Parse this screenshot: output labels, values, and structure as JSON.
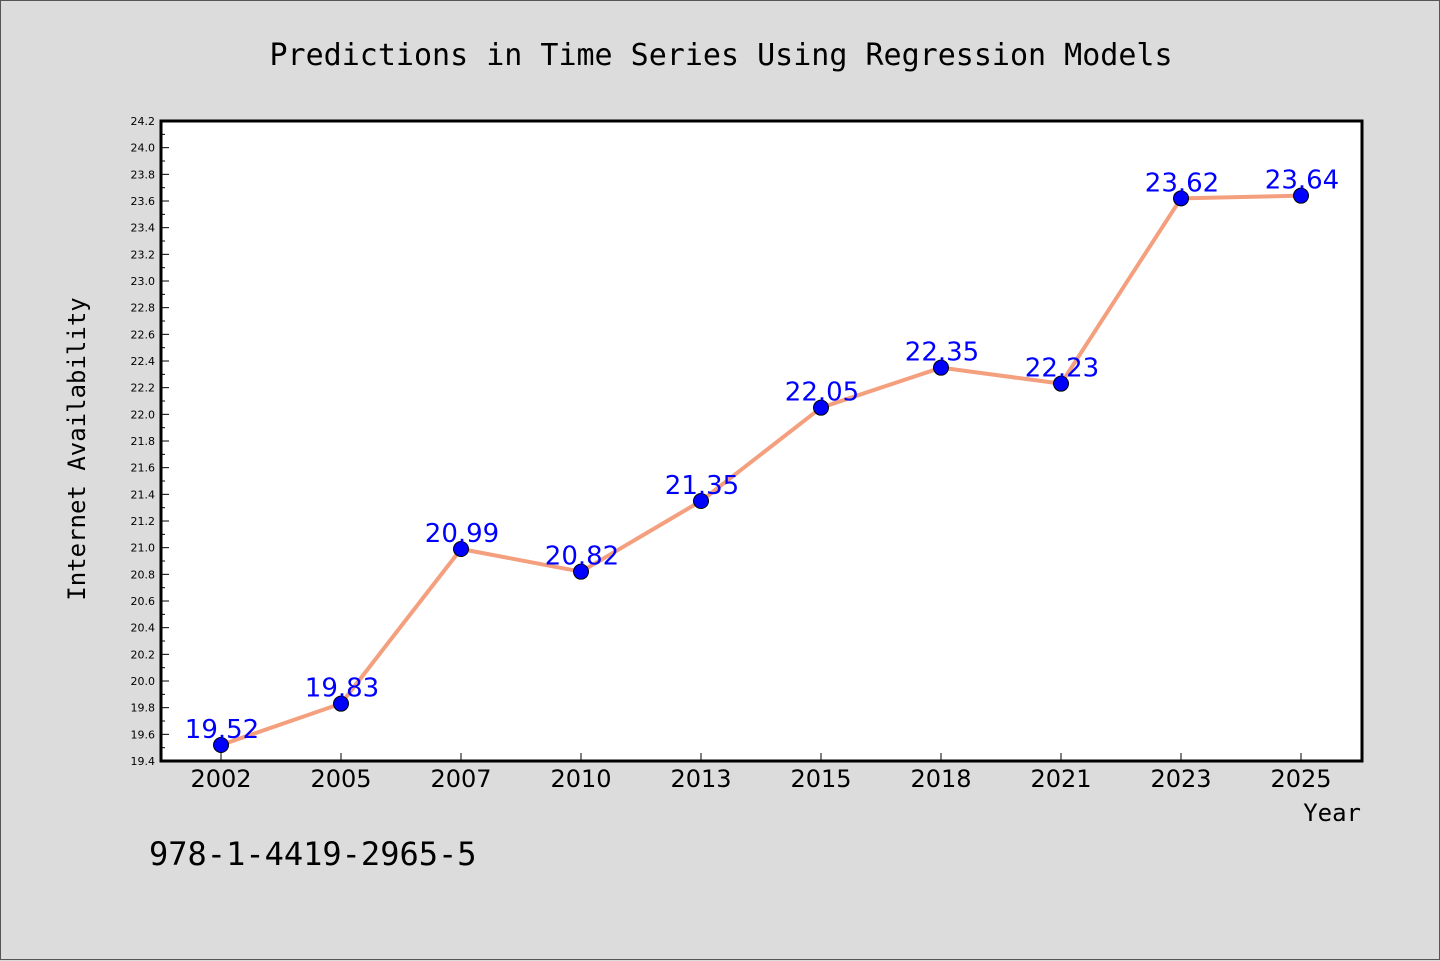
{
  "chart_data": {
    "type": "line",
    "title": "Predictions in Time Series Using Regression Models",
    "xlabel": "Year",
    "ylabel": "Internet Availability",
    "categories": [
      "2002",
      "2005",
      "2007",
      "2010",
      "2013",
      "2015",
      "2018",
      "2021",
      "2023",
      "2025"
    ],
    "series": [
      {
        "values": [
          19.52,
          19.83,
          20.99,
          20.82,
          21.35,
          22.05,
          22.35,
          22.23,
          23.62,
          23.64
        ],
        "line_color": "#f4a07e",
        "marker_color": "#0000ff",
        "label_color": "#0000ff"
      }
    ],
    "data_labels": [
      "19.52",
      "19.83",
      "20.99",
      "20.82",
      "21.35",
      "22.05",
      "22.35",
      "22.23",
      "23.62",
      "23.64"
    ],
    "ylim": [
      19.4,
      24.2
    ],
    "yticks": [
      "19.4",
      "19.6",
      "19.8",
      "20.0",
      "20.2",
      "20.4",
      "20.6",
      "20.8",
      "21.0",
      "21.2",
      "21.4",
      "21.6",
      "21.8",
      "22.0",
      "22.2",
      "22.4",
      "22.6",
      "22.8",
      "23.0",
      "23.2",
      "23.4",
      "23.6",
      "23.8",
      "24.0",
      "24.2"
    ],
    "grid": false,
    "legend": "none"
  },
  "footer": {
    "isbn": "978-1-4419-2965-5"
  }
}
